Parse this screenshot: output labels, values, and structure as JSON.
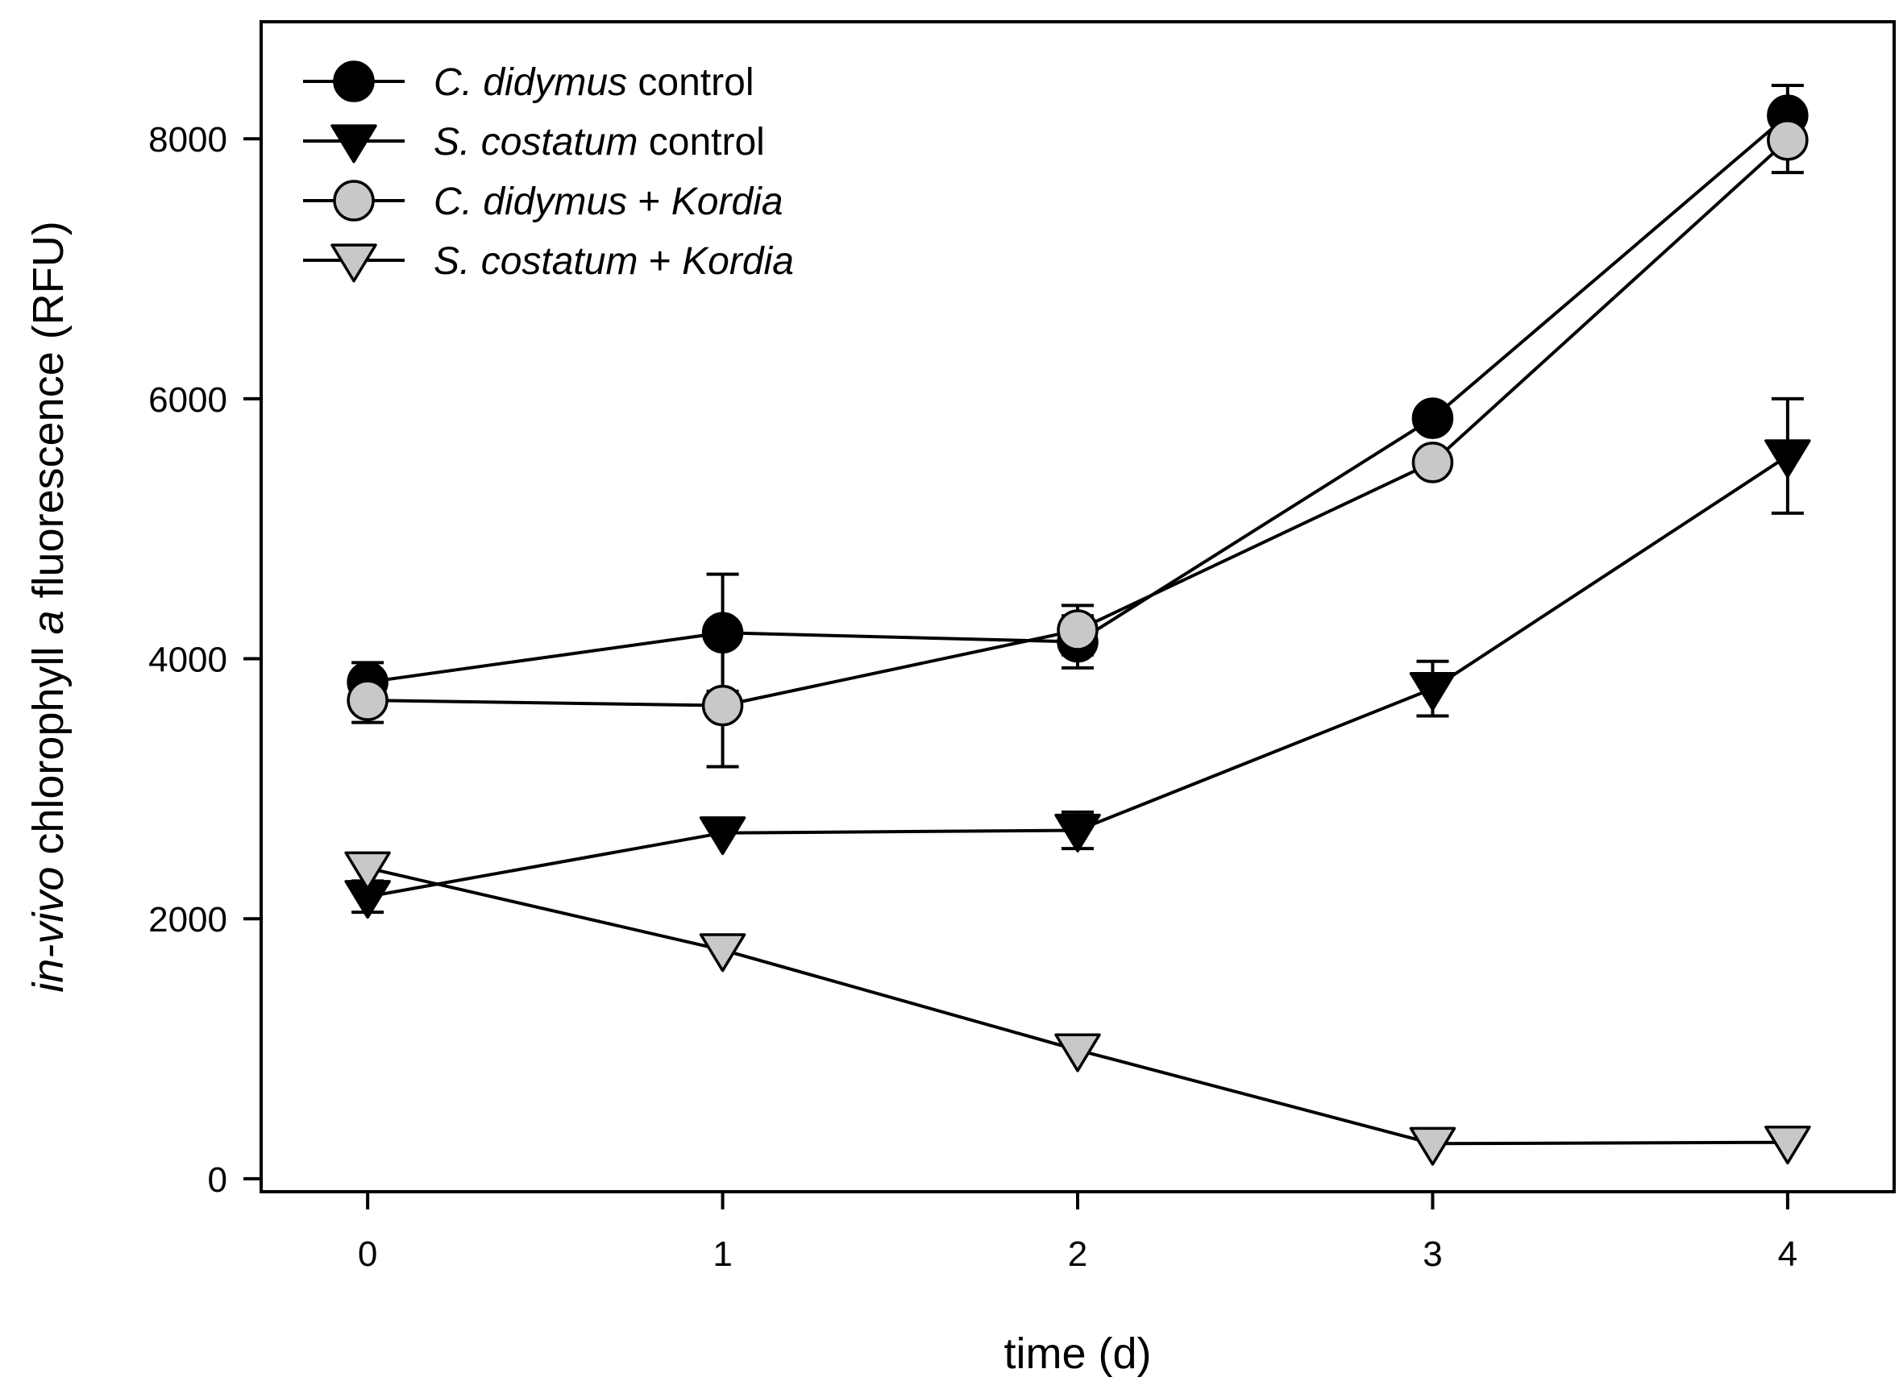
{
  "chart_data": {
    "type": "line",
    "title": "",
    "xlabel": "time (d)",
    "ylabel_parts": [
      {
        "text": "in-vivo",
        "italic": true
      },
      {
        "text": " chlorophyll ",
        "italic": false
      },
      {
        "text": "a",
        "italic": true
      },
      {
        "text": " fluorescence (RFU)",
        "italic": false
      }
    ],
    "xlim": [
      -0.3,
      4.3
    ],
    "ylim": [
      -100,
      8900
    ],
    "xticks": [
      0,
      1,
      2,
      3,
      4
    ],
    "yticks": [
      0,
      2000,
      4000,
      6000,
      8000
    ],
    "grid": false,
    "legend_position": "top-left",
    "series": [
      {
        "name": "C. didymus control",
        "label_parts": [
          {
            "text": "C. didymus",
            "italic": true
          },
          {
            "text": " control",
            "italic": false
          }
        ],
        "marker": "circle",
        "fill": "#000000",
        "x": [
          0,
          1,
          2,
          3,
          4
        ],
        "y": [
          3820,
          4200,
          4130,
          5850,
          8180
        ],
        "err": [
          150,
          450,
          200,
          0,
          230
        ]
      },
      {
        "name": "S. costatum control",
        "label_parts": [
          {
            "text": "S. costatum",
            "italic": true
          },
          {
            "text": " control",
            "italic": false
          }
        ],
        "marker": "triangle-down",
        "fill": "#000000",
        "x": [
          0,
          1,
          2,
          3,
          4
        ],
        "y": [
          2170,
          2660,
          2680,
          3770,
          5560
        ],
        "err": [
          120,
          0,
          140,
          210,
          440
        ]
      },
      {
        "name": "C. didymus + Kordia",
        "label_parts": [
          {
            "text": "C. didymus",
            "italic": true
          },
          {
            "text": " + ",
            "italic": false
          },
          {
            "text": "Kordia",
            "italic": true
          }
        ],
        "marker": "circle",
        "fill": "#c8c8c8",
        "x": [
          0,
          1,
          2,
          3,
          4
        ],
        "y": [
          3680,
          3640,
          4220,
          5510,
          7990
        ],
        "err": [
          170,
          470,
          190,
          0,
          250
        ]
      },
      {
        "name": "S. costatum + Kordia",
        "label_parts": [
          {
            "text": "S. costatum",
            "italic": true
          },
          {
            "text": " + ",
            "italic": false
          },
          {
            "text": "Kordia",
            "italic": true
          }
        ],
        "marker": "triangle-down",
        "fill": "#c8c8c8",
        "x": [
          0,
          1,
          2,
          3,
          4
        ],
        "y": [
          2390,
          1760,
          990,
          270,
          280
        ],
        "err": [
          0,
          0,
          0,
          0,
          0
        ]
      }
    ]
  }
}
